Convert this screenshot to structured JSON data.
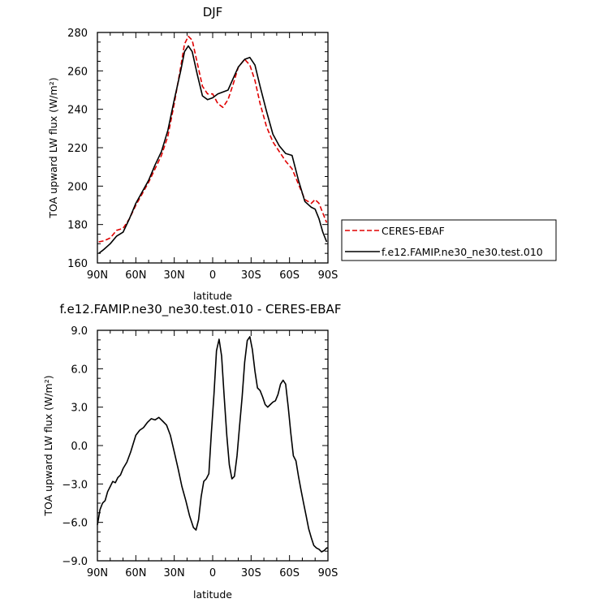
{
  "chart_data": [
    {
      "type": "line",
      "title": "DJF",
      "xlabel": "latitude",
      "ylabel": "TOA upward LW flux (W/m²)",
      "xlim": [
        90,
        -90
      ],
      "ylim": [
        160,
        280
      ],
      "x_tick_values": [
        90,
        60,
        30,
        0,
        -30,
        -60,
        -90
      ],
      "x_tick_labels": [
        "90N",
        "60N",
        "30N",
        "0",
        "30S",
        "60S",
        "90S"
      ],
      "y_tick_values": [
        160,
        180,
        200,
        220,
        240,
        260,
        280
      ],
      "y_tick_labels": [
        "160",
        "180",
        "200",
        "220",
        "240",
        "260",
        "280"
      ],
      "grid": false,
      "legend_position": "right",
      "series": [
        {
          "name": "CERES-EBAF",
          "color": "#e00000",
          "dash": "dashed",
          "x": [
            89,
            85,
            80,
            75,
            70,
            65,
            60,
            55,
            50,
            45,
            40,
            35,
            30,
            25,
            22,
            19,
            16,
            12,
            8,
            4,
            0,
            -4,
            -8,
            -12,
            -16,
            -20,
            -25,
            -29,
            -33,
            -37,
            -42,
            -47,
            -52,
            -57,
            -62,
            -67,
            -72,
            -77,
            -80,
            -83,
            -86,
            -89
          ],
          "y": [
            171,
            171.5,
            173,
            177,
            178,
            183,
            190,
            196,
            202,
            209,
            216,
            226,
            243,
            262,
            274,
            278,
            276,
            264,
            252,
            248,
            248,
            243,
            241,
            245,
            253,
            262,
            266,
            263,
            255,
            243,
            231,
            223,
            218,
            213,
            209,
            201,
            193,
            191,
            193,
            191,
            186,
            181
          ]
        },
        {
          "name": "f.e12.FAMIP.ne30_ne30.test.010",
          "color": "#000000",
          "dash": "solid",
          "x": [
            89,
            85,
            80,
            75,
            70,
            65,
            60,
            55,
            50,
            45,
            40,
            35,
            30,
            25,
            22,
            19,
            16,
            12,
            8,
            4,
            0,
            -4,
            -8,
            -12,
            -16,
            -20,
            -25,
            -29,
            -33,
            -37,
            -42,
            -47,
            -52,
            -57,
            -62,
            -67,
            -72,
            -77,
            -80,
            -83,
            -86,
            -89
          ],
          "y": [
            165,
            167,
            170,
            174,
            176,
            183,
            191,
            197,
            203,
            211,
            218,
            229,
            245,
            260,
            270,
            273,
            270,
            258,
            247,
            245,
            246,
            248,
            249,
            250,
            256,
            262,
            266,
            267,
            263,
            252,
            239,
            227,
            221,
            217,
            216,
            203,
            192,
            189,
            188,
            183,
            176,
            171
          ]
        }
      ]
    },
    {
      "type": "line",
      "title": "f.e12.FAMIP.ne30_ne30.test.010 - CERES-EBAF",
      "xlabel": "latitude",
      "ylabel": "TOA upward LW flux (W/m²)",
      "xlim": [
        90,
        -90
      ],
      "ylim": [
        -9,
        9
      ],
      "x_tick_values": [
        90,
        60,
        30,
        0,
        -30,
        -60,
        -90
      ],
      "x_tick_labels": [
        "90N",
        "60N",
        "30N",
        "0",
        "30S",
        "60S",
        "90S"
      ],
      "y_tick_values": [
        -9,
        -6,
        -3,
        0,
        3,
        6,
        9
      ],
      "y_tick_labels": [
        "−9.0",
        "−6.0",
        "−3.0",
        "0.0",
        "3.0",
        "6.0",
        "9.0"
      ],
      "grid": false,
      "series": [
        {
          "color": "#000000",
          "dash": "solid",
          "x": [
            90,
            88,
            86,
            84,
            82,
            80,
            78,
            76,
            74,
            72,
            70,
            67,
            64,
            60,
            57,
            54,
            51,
            48,
            45,
            42,
            39,
            36,
            33,
            30,
            27,
            24,
            21,
            18,
            15,
            13,
            11,
            9,
            7,
            5,
            3,
            1,
            -1,
            -3,
            -5,
            -7,
            -9,
            -11,
            -13,
            -15,
            -17,
            -19,
            -21,
            -23,
            -25,
            -27,
            -29,
            -31,
            -33,
            -35,
            -37,
            -39,
            -41,
            -43,
            -45,
            -47,
            -49,
            -51,
            -53,
            -55,
            -57,
            -59,
            -61,
            -63,
            -65,
            -67,
            -69,
            -71,
            -73,
            -75,
            -77,
            -79,
            -81,
            -83,
            -85,
            -87,
            -89,
            -90
          ],
          "y": [
            -6.2,
            -5.0,
            -4.5,
            -4.3,
            -3.6,
            -3.2,
            -2.8,
            -2.9,
            -2.5,
            -2.3,
            -1.8,
            -1.3,
            -0.5,
            0.8,
            1.2,
            1.4,
            1.8,
            2.1,
            2.0,
            2.2,
            1.9,
            1.6,
            0.8,
            -0.5,
            -1.8,
            -3.2,
            -4.3,
            -5.5,
            -6.4,
            -6.6,
            -5.8,
            -4.0,
            -2.8,
            -2.6,
            -2.2,
            1.0,
            4.0,
            7.4,
            8.3,
            7.0,
            3.8,
            0.8,
            -1.5,
            -2.6,
            -2.4,
            -0.8,
            1.5,
            3.8,
            6.5,
            8.2,
            8.5,
            7.5,
            5.8,
            4.5,
            4.3,
            3.8,
            3.2,
            3.0,
            3.2,
            3.4,
            3.5,
            4.0,
            4.8,
            5.1,
            4.8,
            3.0,
            1.0,
            -0.8,
            -1.2,
            -2.4,
            -3.5,
            -4.5,
            -5.5,
            -6.5,
            -7.2,
            -7.8,
            -8.0,
            -8.1,
            -8.3,
            -8.2,
            -8.0,
            -8.0
          ]
        }
      ]
    }
  ]
}
